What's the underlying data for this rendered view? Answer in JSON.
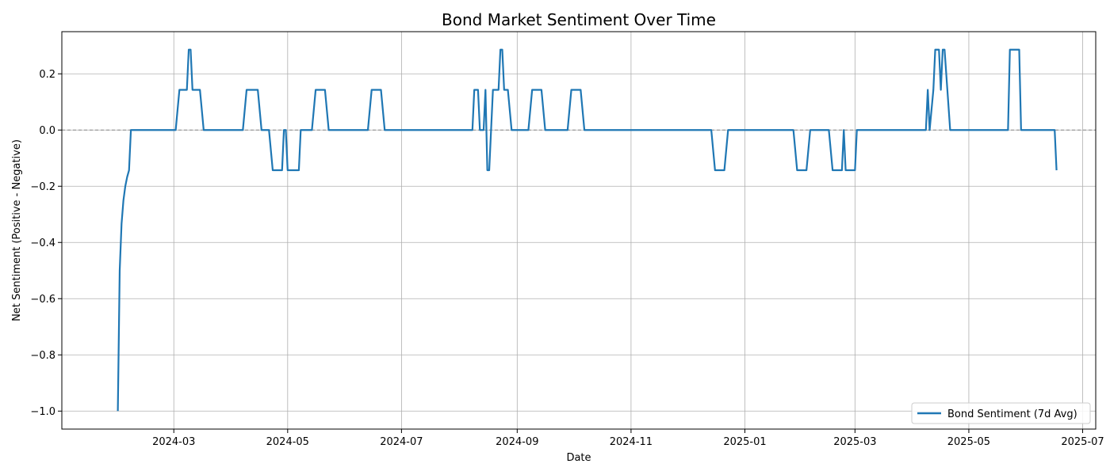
{
  "chart_data": {
    "type": "line",
    "title": "Bond Market Sentiment Over Time",
    "xlabel": "Date",
    "ylabel": "Net Sentiment (Positive - Negative)",
    "x_ticks": [
      "2024-03",
      "2024-05",
      "2024-07",
      "2024-09",
      "2024-11",
      "2025-01",
      "2025-03",
      "2025-05",
      "2025-07"
    ],
    "y_ticks": [
      "−1.0",
      "−0.8",
      "−0.6",
      "−0.4",
      "−0.2",
      "0.0",
      "0.2"
    ],
    "xlim": [
      "2024-01-01",
      "2025-07-08"
    ],
    "ylim": [
      -1.064,
      0.35
    ],
    "grid": true,
    "reference_line": {
      "y": 0,
      "style": "dashed",
      "color": "#888888"
    },
    "legend_position": "bottom-right",
    "series": [
      {
        "name": "Bond Sentiment (7d Avg)",
        "color": "#1f77b4",
        "points": [
          [
            "2024-01-31",
            -1.0
          ],
          [
            "2024-02-01",
            -0.5
          ],
          [
            "2024-02-02",
            -0.333
          ],
          [
            "2024-02-03",
            -0.25
          ],
          [
            "2024-02-04",
            -0.2
          ],
          [
            "2024-02-05",
            -0.167
          ],
          [
            "2024-02-06",
            -0.143
          ],
          [
            "2024-02-07",
            0.0
          ],
          [
            "2024-03-02",
            0.0
          ],
          [
            "2024-03-04",
            0.143
          ],
          [
            "2024-03-08",
            0.143
          ],
          [
            "2024-03-09",
            0.286
          ],
          [
            "2024-03-10",
            0.286
          ],
          [
            "2024-03-11",
            0.143
          ],
          [
            "2024-03-15",
            0.143
          ],
          [
            "2024-03-17",
            0.0
          ],
          [
            "2024-04-07",
            0.0
          ],
          [
            "2024-04-09",
            0.143
          ],
          [
            "2024-04-15",
            0.143
          ],
          [
            "2024-04-17",
            0.0
          ],
          [
            "2024-04-21",
            0.0
          ],
          [
            "2024-04-23",
            -0.143
          ],
          [
            "2024-04-28",
            -0.143
          ],
          [
            "2024-04-29",
            0.0
          ],
          [
            "2024-04-30",
            0.0
          ],
          [
            "2024-05-01",
            -0.143
          ],
          [
            "2024-05-07",
            -0.143
          ],
          [
            "2024-05-08",
            0.0
          ],
          [
            "2024-05-14",
            0.0
          ],
          [
            "2024-05-16",
            0.143
          ],
          [
            "2024-05-21",
            0.143
          ],
          [
            "2024-05-23",
            0.0
          ],
          [
            "2024-06-13",
            0.0
          ],
          [
            "2024-06-15",
            0.143
          ],
          [
            "2024-06-20",
            0.143
          ],
          [
            "2024-06-22",
            0.0
          ],
          [
            "2024-08-08",
            0.0
          ],
          [
            "2024-08-09",
            0.143
          ],
          [
            "2024-08-11",
            0.143
          ],
          [
            "2024-08-12",
            0.0
          ],
          [
            "2024-08-14",
            0.0
          ],
          [
            "2024-08-15",
            0.143
          ],
          [
            "2024-08-16",
            -0.143
          ],
          [
            "2024-08-17",
            -0.143
          ],
          [
            "2024-08-19",
            0.143
          ],
          [
            "2024-08-22",
            0.143
          ],
          [
            "2024-08-23",
            0.286
          ],
          [
            "2024-08-24",
            0.286
          ],
          [
            "2024-08-25",
            0.143
          ],
          [
            "2024-08-27",
            0.143
          ],
          [
            "2024-08-29",
            0.0
          ],
          [
            "2024-09-07",
            0.0
          ],
          [
            "2024-09-09",
            0.143
          ],
          [
            "2024-09-14",
            0.143
          ],
          [
            "2024-09-16",
            0.0
          ],
          [
            "2024-09-28",
            0.0
          ],
          [
            "2024-09-30",
            0.143
          ],
          [
            "2024-10-05",
            0.143
          ],
          [
            "2024-10-07",
            0.0
          ],
          [
            "2024-12-14",
            0.0
          ],
          [
            "2024-12-16",
            -0.143
          ],
          [
            "2024-12-21",
            -0.143
          ],
          [
            "2024-12-23",
            0.0
          ],
          [
            "2025-01-27",
            0.0
          ],
          [
            "2025-01-29",
            -0.143
          ],
          [
            "2025-02-03",
            -0.143
          ],
          [
            "2025-02-05",
            0.0
          ],
          [
            "2025-02-15",
            0.0
          ],
          [
            "2025-02-17",
            -0.143
          ],
          [
            "2025-02-22",
            -0.143
          ],
          [
            "2025-02-23",
            0.0
          ],
          [
            "2025-02-24",
            -0.143
          ],
          [
            "2025-03-01",
            -0.143
          ],
          [
            "2025-03-02",
            0.0
          ],
          [
            "2025-04-08",
            0.0
          ],
          [
            "2025-04-09",
            0.143
          ],
          [
            "2025-04-10",
            0.0
          ],
          [
            "2025-04-12",
            0.143
          ],
          [
            "2025-04-13",
            0.286
          ],
          [
            "2025-04-15",
            0.286
          ],
          [
            "2025-04-16",
            0.143
          ],
          [
            "2025-04-17",
            0.286
          ],
          [
            "2025-04-18",
            0.286
          ],
          [
            "2025-04-21",
            0.0
          ],
          [
            "2025-05-22",
            0.0
          ],
          [
            "2025-05-23",
            0.286
          ],
          [
            "2025-05-28",
            0.286
          ],
          [
            "2025-05-29",
            0.0
          ],
          [
            "2025-06-16",
            0.0
          ],
          [
            "2025-06-17",
            -0.143
          ]
        ]
      }
    ]
  }
}
